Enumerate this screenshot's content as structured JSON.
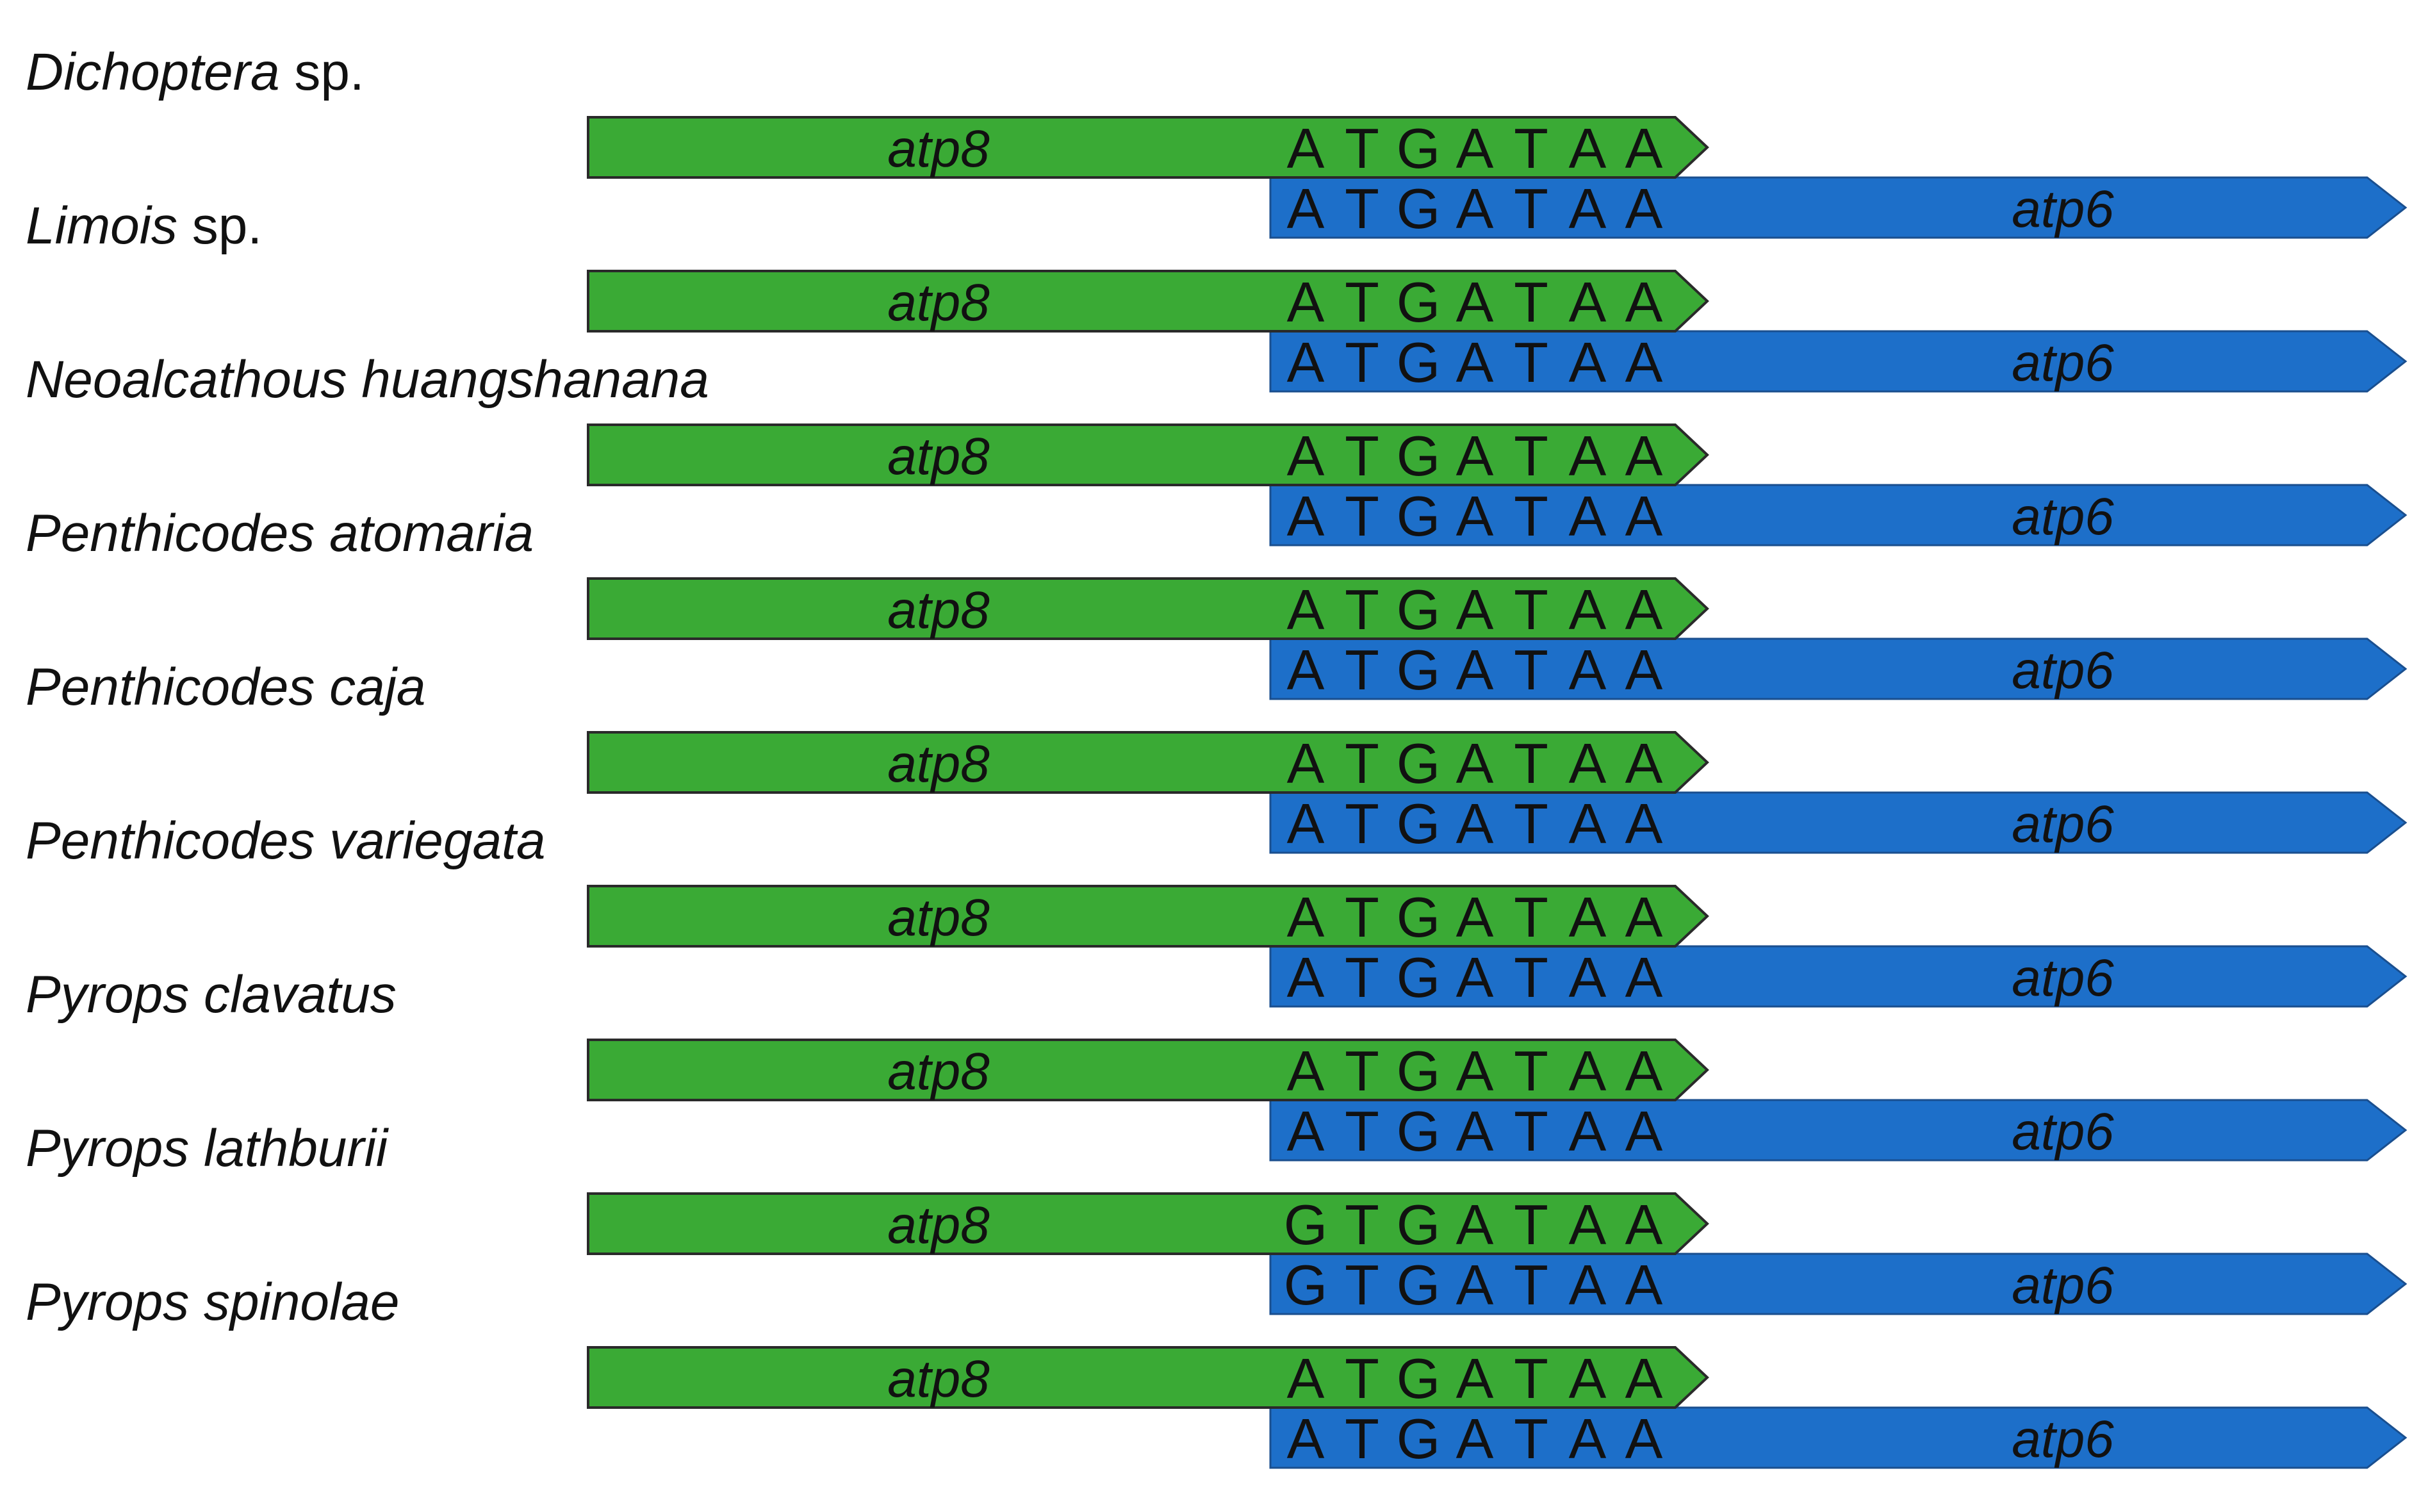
{
  "figure": {
    "description_type": "gene overlap alignment",
    "colors": {
      "atp8_fill": "#3aaa35",
      "atp8_stroke": "#2a2a2a",
      "atp6_fill": "#1d6fc9",
      "atp6_stroke": "#1a4f8f",
      "text": "#111111"
    },
    "genes": {
      "upstream": "atp8",
      "downstream": "atp6"
    },
    "rows": [
      {
        "species": "Dichoptera",
        "suffix": " sp.",
        "atp8_codon": "ATGATAA",
        "atp6_codon": "ATGATAA"
      },
      {
        "species": "Limois",
        "suffix": " sp.",
        "atp8_codon": "ATGATAA",
        "atp6_codon": "ATGATAA"
      },
      {
        "species": "Neoalcathous huangshanana",
        "suffix": "",
        "atp8_codon": "ATGATAA",
        "atp6_codon": "ATGATAA"
      },
      {
        "species": "Penthicodes atomaria",
        "suffix": "",
        "atp8_codon": "ATGATAA",
        "atp6_codon": "ATGATAA"
      },
      {
        "species": "Penthicodes caja",
        "suffix": "",
        "atp8_codon": "ATGATAA",
        "atp6_codon": "ATGATAA"
      },
      {
        "species": "Penthicodes variegata",
        "suffix": "",
        "atp8_codon": "ATGATAA",
        "atp6_codon": "ATGATAA"
      },
      {
        "species": "Pyrops clavatus",
        "suffix": "",
        "atp8_codon": "ATGATAA",
        "atp6_codon": "ATGATAA"
      },
      {
        "species": "Pyrops lathburii",
        "suffix": "",
        "atp8_codon": "GTGATAA",
        "atp6_codon": "GTGATAA"
      },
      {
        "species": "Pyrops spinolae",
        "suffix": "",
        "atp8_codon": "ATGATAA",
        "atp6_codon": "ATGATAA"
      }
    ]
  }
}
